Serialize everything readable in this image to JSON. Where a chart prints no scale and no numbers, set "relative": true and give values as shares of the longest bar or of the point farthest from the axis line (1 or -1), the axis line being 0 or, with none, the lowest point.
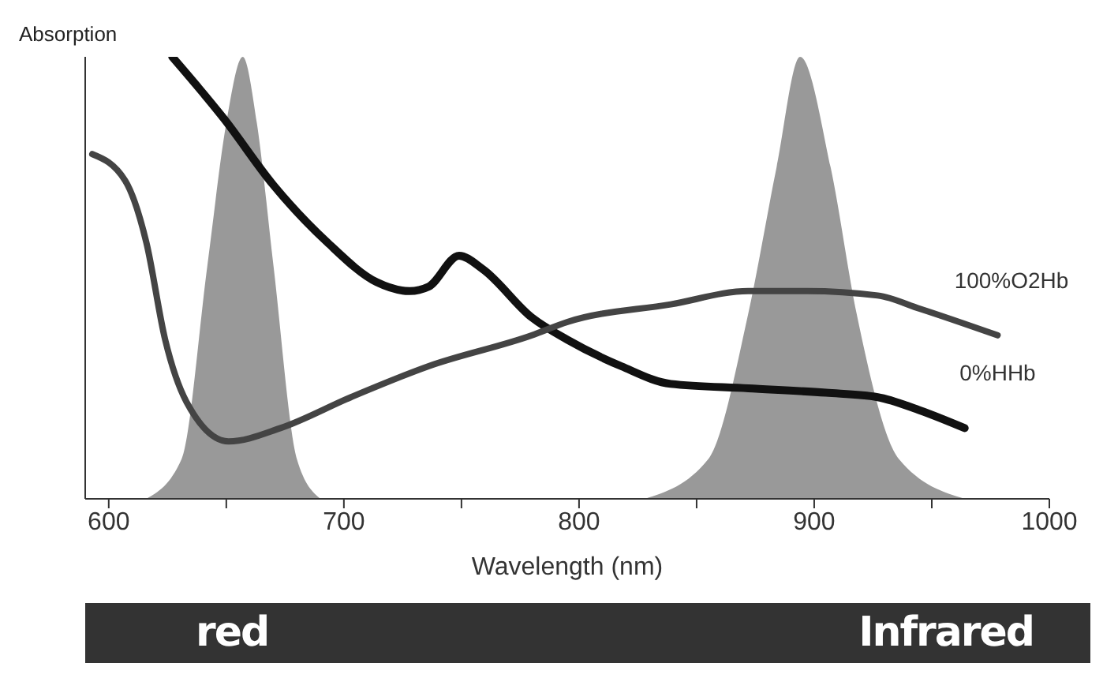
{
  "chart_data": {
    "type": "line",
    "relative": true,
    "xlabel": "Wavelength (nm)",
    "ylabel": "Absorption",
    "xlim": [
      590,
      1000
    ],
    "xticks": [
      600,
      {
        "value": 650,
        "label": null
      },
      700,
      {
        "value": 750,
        "label": null
      },
      800,
      {
        "value": 850,
        "label": null
      },
      900,
      {
        "value": 950,
        "label": null
      },
      1000
    ],
    "grid": false,
    "legend": false,
    "series": [
      {
        "type": "area",
        "color": "#999999",
        "x": [
          616,
          631,
          642,
          650,
          657,
          663,
          670,
          680,
          690
        ],
        "values": [
          0,
          0.09,
          0.53,
          0.85,
          1.0,
          0.85,
          0.53,
          0.09,
          0
        ]
      },
      {
        "type": "area",
        "color": "#999999",
        "x": [
          828,
          855,
          872,
          884,
          894,
          907,
          918,
          936,
          964
        ],
        "values": [
          0,
          0.09,
          0.42,
          0.75,
          1.0,
          0.75,
          0.42,
          0.09,
          0
        ]
      },
      {
        "type": "line",
        "name": "0%HHb",
        "color": "#111111",
        "x": [
          627,
          649,
          670,
          693,
          714,
          728,
          736,
          749,
          759,
          780,
          795,
          818,
          839,
          872,
          905,
          927,
          945,
          964
        ],
        "values": [
          1.0,
          0.86,
          0.71,
          0.58,
          0.49,
          0.47,
          0.48,
          0.55,
          0.52,
          0.41,
          0.36,
          0.3,
          0.26,
          0.25,
          0.24,
          0.23,
          0.2,
          0.16
        ]
      },
      {
        "type": "line",
        "name": "100%O2Hb",
        "color": "#444444",
        "x": [
          593,
          607,
          616,
          624,
          633,
          651,
          673,
          703,
          736,
          780,
          795,
          839,
          872,
          897,
          927,
          945,
          978
        ],
        "values": [
          0.78,
          0.72,
          0.58,
          0.36,
          0.22,
          0.13,
          0.16,
          0.23,
          0.3,
          0.37,
          0.4,
          0.44,
          0.47,
          0.47,
          0.46,
          0.43,
          0.37
        ]
      }
    ],
    "annotations": [
      "red",
      "Infrared"
    ]
  }
}
